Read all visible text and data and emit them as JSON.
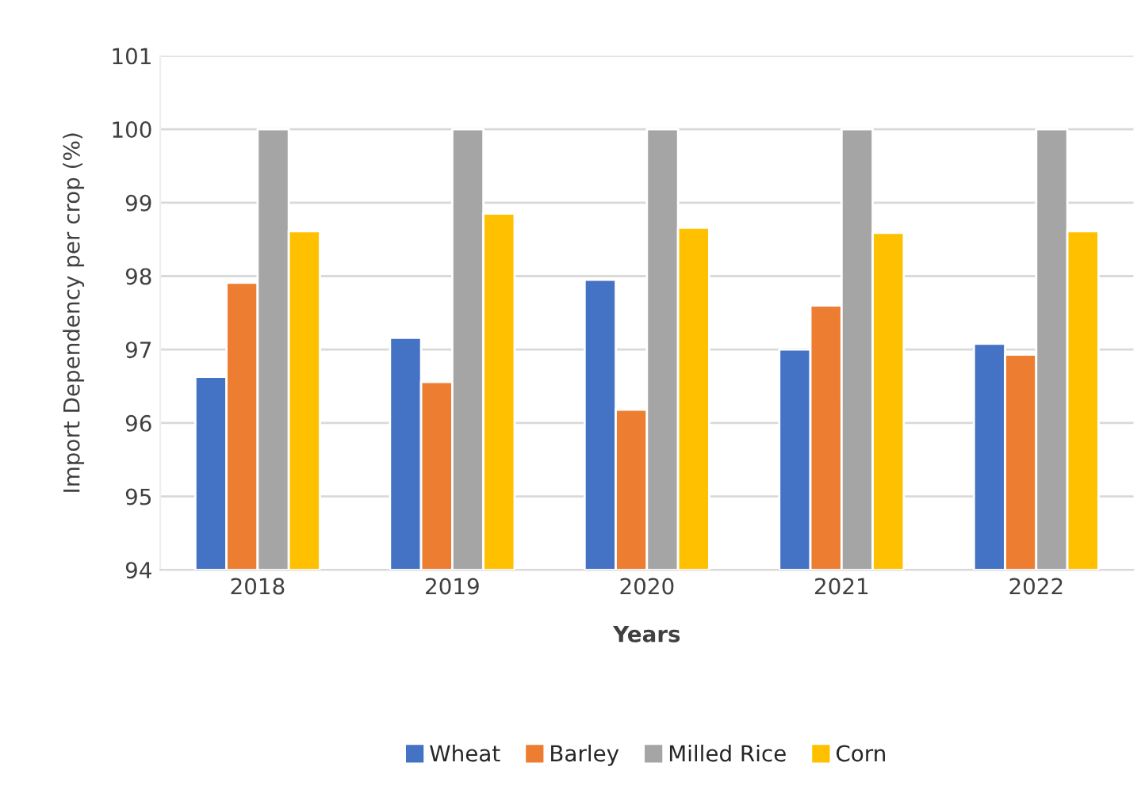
{
  "chart_data": {
    "type": "bar",
    "xlabel": "Years",
    "ylabel": "Import Dependency per crop (%)",
    "categories": [
      "2018",
      "2019",
      "2020",
      "2021",
      "2022"
    ],
    "series": [
      {
        "name": "Wheat",
        "color": "#4472c4",
        "values": [
          96.63,
          97.16,
          97.95,
          97.0,
          97.08
        ]
      },
      {
        "name": "Barley",
        "color": "#ed7d31",
        "values": [
          97.91,
          96.56,
          96.18,
          97.6,
          96.93
        ]
      },
      {
        "name": "Milled Rice",
        "color": "#a5a5a5",
        "values": [
          100,
          100,
          100,
          100,
          100
        ]
      },
      {
        "name": "Corn",
        "color": "#ffc000",
        "values": [
          98.61,
          98.85,
          98.66,
          98.59,
          98.61
        ]
      }
    ],
    "ylim": [
      94,
      101
    ],
    "yticks": [
      94,
      95,
      96,
      97,
      98,
      99,
      100,
      101
    ],
    "grid": "y",
    "legend": "bottom"
  }
}
